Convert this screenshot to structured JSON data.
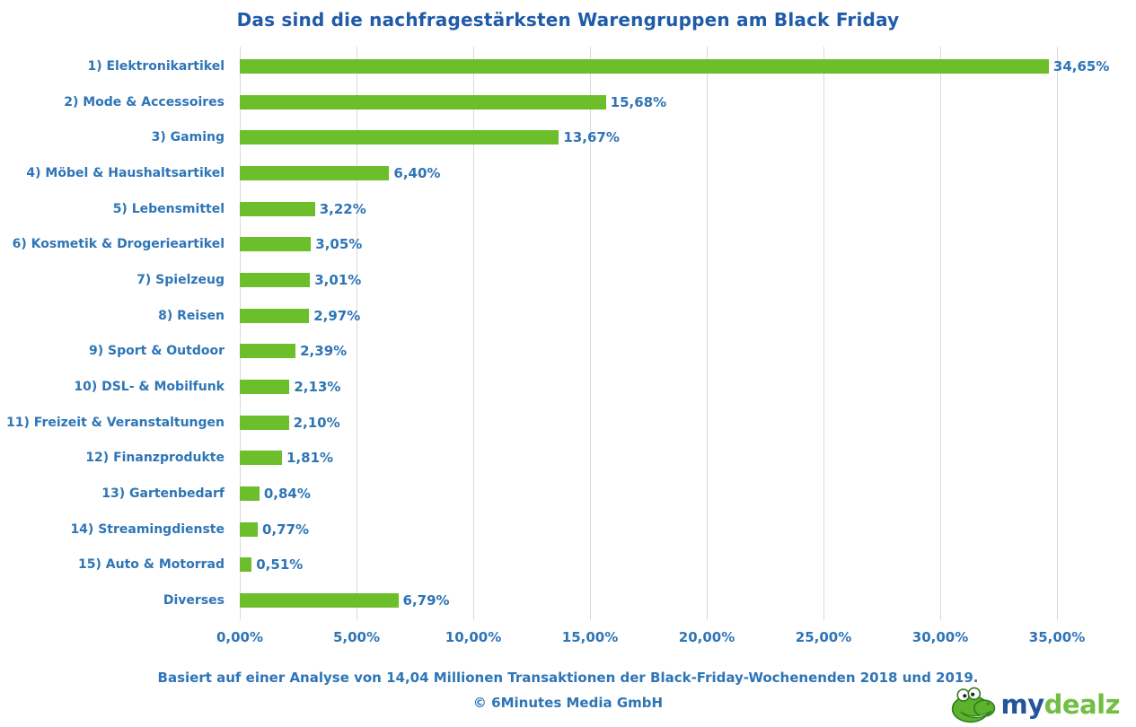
{
  "title": "Das sind die nachfragestärksten Warengruppen am Black Friday",
  "chart_data": {
    "type": "bar",
    "orientation": "horizontal",
    "title": "Das sind die nachfragestärksten Warengruppen am Black Friday",
    "categories": [
      "1) Elektronikartikel",
      "2) Mode & Accessoires",
      "3) Gaming",
      "4) Möbel & Haushaltsartikel",
      "5) Lebensmittel",
      "6) Kosmetik & Drogerieartikel",
      "7) Spielzeug",
      "8) Reisen",
      "9) Sport & Outdoor",
      "10) DSL- & Mobilfunk",
      "11) Freizeit & Veranstaltungen",
      "12) Finanzprodukte",
      "13) Gartenbedarf",
      "14) Streamingdienste",
      "15) Auto & Motorrad",
      "Diverses"
    ],
    "values": [
      34.65,
      15.68,
      13.67,
      6.4,
      3.22,
      3.05,
      3.01,
      2.97,
      2.39,
      2.13,
      2.1,
      1.81,
      0.84,
      0.77,
      0.51,
      6.79
    ],
    "value_labels": [
      "34,65%",
      "15,68%",
      "13,67%",
      "6,40%",
      "3,22%",
      "3,05%",
      "3,01%",
      "2,97%",
      "2,39%",
      "2,13%",
      "2,10%",
      "1,81%",
      "0,84%",
      "0,77%",
      "0,51%",
      "6,79%"
    ],
    "x_ticks": [
      "0,00%",
      "5,00%",
      "10,00%",
      "15,00%",
      "20,00%",
      "25,00%",
      "30,00%",
      "35,00%"
    ],
    "xlabel": "",
    "ylabel": "",
    "xlim": [
      0,
      37.5
    ],
    "grid": true,
    "legend": "none",
    "bar_color": "#6CBE2B",
    "label_color": "#2E75B6",
    "title_color": "#1F5BA8",
    "gridline_color": "#D9D9D9"
  },
  "footer": {
    "source_note": "Basiert auf einer Analyse von 14,04 Millionen Transaktionen der Black-Friday-Wochenenden 2018 und 2019.",
    "copyright": "© 6Minutes Media GmbH"
  },
  "logo": {
    "brand_first": "my",
    "brand_second": "dealz"
  }
}
